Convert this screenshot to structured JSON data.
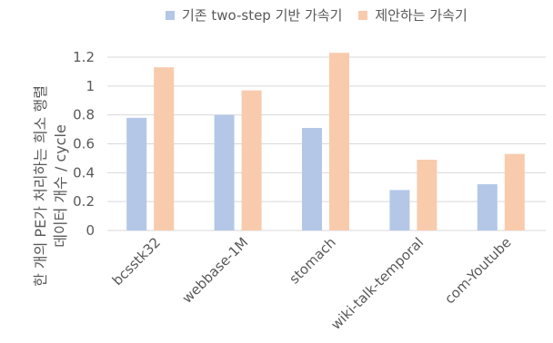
{
  "chart_data": {
    "type": "bar",
    "title": "",
    "xlabel": "",
    "ylabel": [
      "한 개의 PE가 처리하는 희소 행렬",
      "데이터 개수 / cycle"
    ],
    "ylim": [
      0,
      1.2
    ],
    "yticks": [
      "0",
      "0.2",
      "0.4",
      "0.6",
      "0.8",
      "1",
      "1.2"
    ],
    "grid": true,
    "legend_position": "top",
    "categories": [
      "bcsstk32",
      "webbase-1M",
      "stomach",
      "wiki-talk-temporal",
      "com-Youtube"
    ],
    "series": [
      {
        "name": "기존 two-step 기반 가속기",
        "color": "#b4c7e7",
        "values": [
          0.78,
          0.8,
          0.71,
          0.28,
          0.32
        ]
      },
      {
        "name": "제안하는 가속기",
        "color": "#f8cbad",
        "values": [
          1.13,
          0.97,
          1.23,
          0.49,
          0.53
        ]
      }
    ]
  }
}
